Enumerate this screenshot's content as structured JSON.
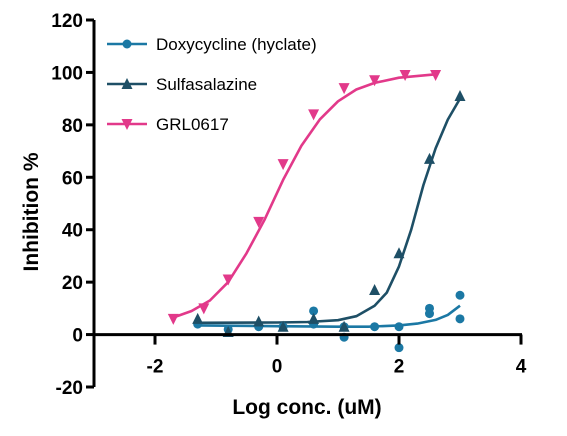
{
  "chart_data": {
    "type": "scatter",
    "title": "",
    "xlabel": "Log conc. (uM)",
    "ylabel": "Inhibition %",
    "xlim": [
      -3,
      4
    ],
    "ylim": [
      -20,
      120
    ],
    "x_ticks": [
      -2,
      0,
      2,
      4
    ],
    "y_ticks": [
      -20,
      0,
      20,
      40,
      60,
      80,
      100,
      120
    ],
    "x_tick_labels": [
      "-2",
      "0",
      "2",
      "4"
    ],
    "y_tick_labels": [
      "-20",
      "0",
      "20",
      "40",
      "60",
      "80",
      "100",
      "120"
    ],
    "grid": false,
    "legend_position": "top-left",
    "series": [
      {
        "name": "Doxycycline (hyclate)",
        "color": "#1b78a4",
        "marker": "circle",
        "points": [
          [
            -1.3,
            4
          ],
          [
            -0.8,
            2
          ],
          [
            -0.3,
            3
          ],
          [
            0.1,
            3
          ],
          [
            0.6,
            9
          ],
          [
            0.6,
            4
          ],
          [
            1.1,
            3
          ],
          [
            1.1,
            -1
          ],
          [
            1.6,
            3
          ],
          [
            2.0,
            -5
          ],
          [
            2.0,
            3
          ],
          [
            2.5,
            10
          ],
          [
            2.5,
            8
          ],
          [
            3.0,
            15
          ],
          [
            3.0,
            6
          ]
        ],
        "curve": [
          [
            -1.3,
            3.5
          ],
          [
            0.0,
            3.2
          ],
          [
            1.0,
            3.0
          ],
          [
            1.5,
            3.0
          ],
          [
            2.0,
            3.5
          ],
          [
            2.3,
            4.2
          ],
          [
            2.6,
            5.6
          ],
          [
            2.8,
            7.5
          ],
          [
            3.0,
            11
          ]
        ]
      },
      {
        "name": "Sulfasalazine",
        "color": "#1e4f66",
        "marker": "triangle-up",
        "points": [
          [
            -1.3,
            6
          ],
          [
            -0.8,
            1
          ],
          [
            -0.3,
            5
          ],
          [
            0.1,
            3
          ],
          [
            0.6,
            6
          ],
          [
            1.1,
            3
          ],
          [
            1.6,
            17
          ],
          [
            2.0,
            31
          ],
          [
            2.5,
            67
          ],
          [
            3.0,
            91
          ]
        ],
        "curve": [
          [
            -1.3,
            4.5
          ],
          [
            0.0,
            4.6
          ],
          [
            0.5,
            4.8
          ],
          [
            1.0,
            5.5
          ],
          [
            1.3,
            7
          ],
          [
            1.6,
            11
          ],
          [
            1.8,
            16
          ],
          [
            2.0,
            26
          ],
          [
            2.2,
            40
          ],
          [
            2.4,
            57
          ],
          [
            2.6,
            71
          ],
          [
            2.8,
            82
          ],
          [
            3.0,
            90
          ]
        ]
      },
      {
        "name": "GRL0617",
        "color": "#e2398a",
        "marker": "triangle-down",
        "points": [
          [
            -1.7,
            6
          ],
          [
            -1.2,
            10
          ],
          [
            -0.8,
            21
          ],
          [
            -0.3,
            43
          ],
          [
            0.1,
            65
          ],
          [
            0.6,
            84
          ],
          [
            1.1,
            94
          ],
          [
            1.6,
            97
          ],
          [
            2.1,
            99
          ],
          [
            2.6,
            99
          ]
        ],
        "curve": [
          [
            -1.7,
            6.5
          ],
          [
            -1.4,
            9
          ],
          [
            -1.1,
            13
          ],
          [
            -0.8,
            20
          ],
          [
            -0.5,
            31
          ],
          [
            -0.2,
            44
          ],
          [
            0.1,
            59
          ],
          [
            0.4,
            72
          ],
          [
            0.7,
            82
          ],
          [
            1.0,
            89
          ],
          [
            1.3,
            93.5
          ],
          [
            1.6,
            96
          ],
          [
            2.0,
            98
          ],
          [
            2.6,
            99.3
          ]
        ]
      }
    ]
  }
}
